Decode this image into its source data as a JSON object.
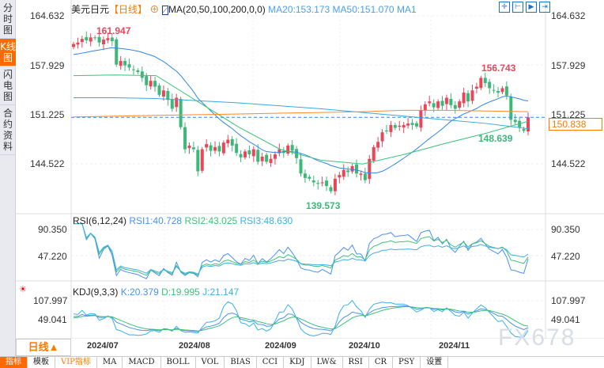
{
  "sidebar": {
    "items": [
      {
        "label": "分时图"
      },
      {
        "label": "K线图",
        "active": true
      },
      {
        "label": "闪电图"
      },
      {
        "label": "合约资料"
      }
    ]
  },
  "header": {
    "symbol": "美元日元",
    "period_tag": "【日线】",
    "ma_label": "MA(20,50,100,200,0,0)",
    "ma20": "MA20:153.173",
    "ma50": "MA50:151.070",
    "ma1": "MA1"
  },
  "toolbar": {
    "icons": [
      "crosshair-icon",
      "zoom-range-icon",
      "play-icon",
      "exit-icon"
    ]
  },
  "price_axis": {
    "left": [
      "164.632",
      "157.929",
      "151.225",
      "144.522"
    ],
    "right": [
      "164.632",
      "157.929",
      "151.225",
      "144.522"
    ],
    "last_price": "150.838",
    "max": 164.632,
    "min": 144.522
  },
  "annotations": {
    "high": "161.947",
    "low": "139.573",
    "local_high": "156.743",
    "local_low": "148.639"
  },
  "rsi": {
    "label": "RSI(6,12,24)",
    "rsi1": "RSI1:40.728",
    "rsi2": "RSI2:43.025",
    "rsi3": "RSI3:48.630",
    "axis": [
      "90.350",
      "47.220"
    ]
  },
  "kdj": {
    "label": "KDJ(9,3,3)",
    "k": "K:20.379",
    "d": "D:19.995",
    "j": "J:21.147",
    "axis": [
      "107.997",
      "49.041"
    ]
  },
  "period_button": "日线▲",
  "dates": [
    "2024/07",
    "2024/08",
    "2024/09",
    "2024/10",
    "2024/11"
  ],
  "tabs": [
    "指标",
    "模板",
    "VIP指标",
    "MA",
    "MACD",
    "BOLL",
    "VOL",
    "BIAS",
    "CCI",
    "KDJ",
    "LW&",
    "RSI",
    "CR",
    "PSY",
    "设置"
  ],
  "watermark": "FX678",
  "colors": {
    "up": "#e8475a",
    "down": "#3cb878",
    "ma20": "#2f86e8",
    "ma50": "#3cc27a",
    "ma100": "#3aa8e0",
    "ma200": "#ff8a2a",
    "accent": "#ff6a00"
  },
  "chart_data": {
    "type": "candlestick",
    "closes": [
      160.8,
      161.0,
      161.5,
      161.3,
      161.7,
      161.6,
      161.0,
      161.4,
      161.6,
      161.2,
      158.0,
      158.5,
      157.9,
      157.6,
      157.3,
      157.0,
      156.2,
      155.2,
      155.8,
      155.0,
      153.9,
      154.5,
      153.2,
      152.0,
      153.5,
      149.5,
      146.5,
      147.0,
      146.5,
      143.5,
      146.5,
      147.2,
      146.3,
      146.8,
      146.2,
      147.4,
      147.8,
      147.0,
      146.0,
      145.4,
      146.2,
      145.8,
      146.5,
      144.8,
      145.5,
      144.8,
      145.2,
      145.8,
      146.5,
      146.0,
      147.0,
      146.3,
      145.3,
      143.2,
      142.6,
      142.5,
      142.0,
      141.8,
      142.0,
      141.5,
      140.8,
      142.5,
      143.0,
      143.7,
      143.4,
      144.2,
      143.2,
      143.2,
      142.3,
      145.2,
      146.8,
      147.5,
      148.8,
      149.0,
      149.8,
      149.4,
      149.7,
      149.8,
      150.0,
      149.8,
      149.6,
      151.8,
      152.6,
      153.0,
      152.2,
      153.0,
      152.4,
      153.5,
      152.5,
      152.0,
      153.0,
      154.2,
      153.0,
      154.5,
      155.0,
      156.2,
      155.5,
      154.8,
      154.5,
      154.2,
      154.8,
      153.8,
      150.5,
      150.2,
      149.5,
      149.0,
      150.838
    ],
    "ma50": [
      156.5,
      156.6,
      156.5,
      153.0,
      149.5,
      146.5,
      145.0,
      144.5,
      145.8,
      147.3,
      148.7,
      150.3
    ],
    "ma100": [
      153.5,
      153.5,
      153.4,
      153.1,
      152.8,
      152.4,
      152.0,
      151.5,
      151.0,
      150.5,
      150.0,
      149.3
    ],
    "ma200": [
      150.9,
      151.0,
      151.1,
      151.2,
      151.3,
      151.4,
      151.5,
      151.6,
      151.8,
      151.8,
      151.7,
      151.6
    ],
    "ylim": [
      144.522,
      164.632
    ]
  }
}
